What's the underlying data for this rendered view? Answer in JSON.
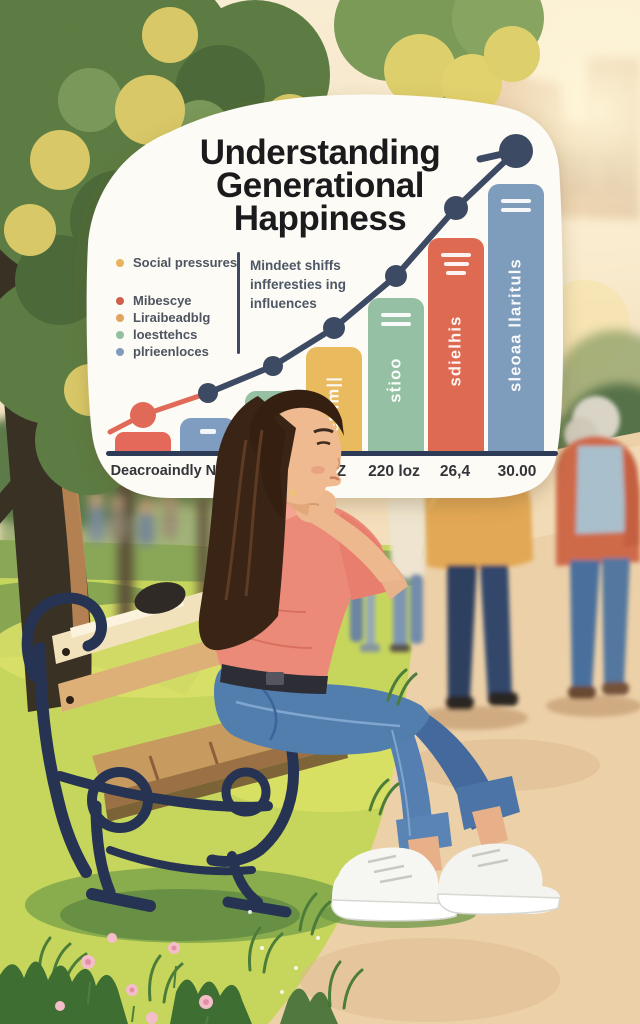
{
  "poster": {
    "title_lines": [
      "Understanding",
      "Generational",
      "Happiness"
    ]
  },
  "legend": {
    "items": [
      {
        "label": "Social pressures",
        "color": "#e9b25c"
      },
      {
        "label": "Mibescye",
        "color": "#cf5f4c"
      },
      {
        "label": "Liraibeadblg",
        "color": "#e2a35e"
      },
      {
        "label": "loesttehcs",
        "color": "#93bfa1"
      },
      {
        "label": "plrieenloces",
        "color": "#7e9cbe"
      }
    ],
    "note_lines": [
      "Mindeet shiffs",
      "infferesties ing",
      "influences"
    ]
  },
  "chart_data": {
    "type": "bar",
    "title": "Understanding Generational Happiness",
    "x_tick_labels": [
      "Deacroaindly NG",
      "2Z",
      "220 loz",
      "26,4",
      "30.00"
    ],
    "ylim": [
      0,
      12
    ],
    "grid": false,
    "legend_position": "upper-left",
    "bars": [
      {
        "label": "",
        "value": 0.9,
        "color": "#e4695a",
        "icon": ""
      },
      {
        "label": "",
        "value": 1.4,
        "color": "#7e9dc0",
        "icon": "dash"
      },
      {
        "label": "",
        "value": 2.4,
        "color": "#95c0a4",
        "icon": ""
      },
      {
        "label": "etilm||",
        "value": 4.0,
        "color": "#eaba5e",
        "icon": ""
      },
      {
        "label": "sṫioo",
        "value": 5.8,
        "color": "#95c0a4",
        "icon": "two-lines"
      },
      {
        "label": "sdielhis",
        "value": 8.0,
        "color": "#df6a52",
        "icon": "three-lines"
      },
      {
        "label": "sleoaa llarituls",
        "value": 10.0,
        "color": "#7e9cbb",
        "icon": "two-lines"
      }
    ],
    "trend_line": {
      "values": [
        1.5,
        2.3,
        3.3,
        4.7,
        6.6,
        9.1,
        11.2
      ],
      "color_main": "#3d4a63",
      "color_start": "#e06a57"
    }
  },
  "style_colors": {
    "card_bg": "#fdfbf5",
    "title_text": "#1b1b1d",
    "axis_text": "#34353a",
    "legend_text": "#4e5460",
    "axis_line": "#2e3b56"
  }
}
